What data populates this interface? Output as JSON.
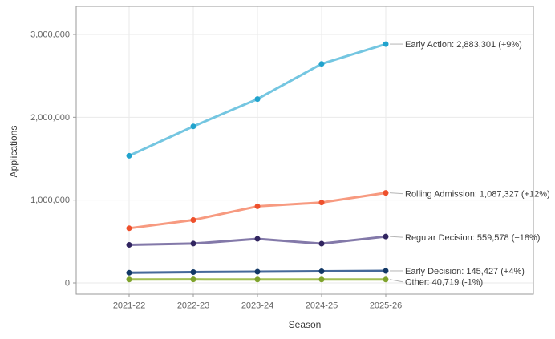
{
  "chart_data": {
    "type": "line",
    "title": "",
    "xlabel": "Season",
    "ylabel": "Applications",
    "categories": [
      "2021-22",
      "2022-23",
      "2023-24",
      "2024-25",
      "2025-26"
    ],
    "y_ticks": [
      {
        "value": 0,
        "label": "0"
      },
      {
        "value": 1000000,
        "label": "1,000,000"
      },
      {
        "value": 2000000,
        "label": "2,000,000"
      },
      {
        "value": 3000000,
        "label": "3,000,000"
      }
    ],
    "ylim": [
      -140000,
      3340000
    ],
    "grid": true,
    "legend_position": "direct-labels-right",
    "series": [
      {
        "name": "Early Action",
        "values": [
          1535000,
          1890000,
          2220000,
          2645000,
          2883301
        ],
        "end_label": "Early Action: 2,883,301 (+9%)",
        "line_color": "#74c6e1",
        "point_color": "#21a3cd"
      },
      {
        "name": "Rolling Admission",
        "values": [
          660000,
          760000,
          925000,
          971000,
          1087327
        ],
        "end_label": "Rolling Admission: 1,087,327 (+12%)",
        "line_color": "#f79a80",
        "point_color": "#ee502c"
      },
      {
        "name": "Regular Decision",
        "values": [
          460000,
          475000,
          532000,
          474000,
          559578
        ],
        "end_label": "Regular Decision: 559,578 (+18%)",
        "line_color": "#8379a9",
        "point_color": "#312560"
      },
      {
        "name": "Early Decision",
        "values": [
          123000,
          131000,
          135000,
          139800,
          145427
        ],
        "end_label": "Early Decision: 145,427 (+4%)",
        "line_color": "#46699a",
        "point_color": "#123866"
      },
      {
        "name": "Other",
        "values": [
          41000,
          41800,
          41200,
          41130,
          40719
        ],
        "end_label": "Other: 40,719 (-1%)",
        "line_color": "#a2bf55",
        "point_color": "#7fa32c"
      }
    ],
    "styles": {
      "background": "#ffffff",
      "grid_color": "#eaeaea",
      "border_color": "#9a9a9a",
      "tick_label_color": "#636363",
      "label_color": "#3b3b3b",
      "connector_color": "#b5b5b5"
    }
  }
}
